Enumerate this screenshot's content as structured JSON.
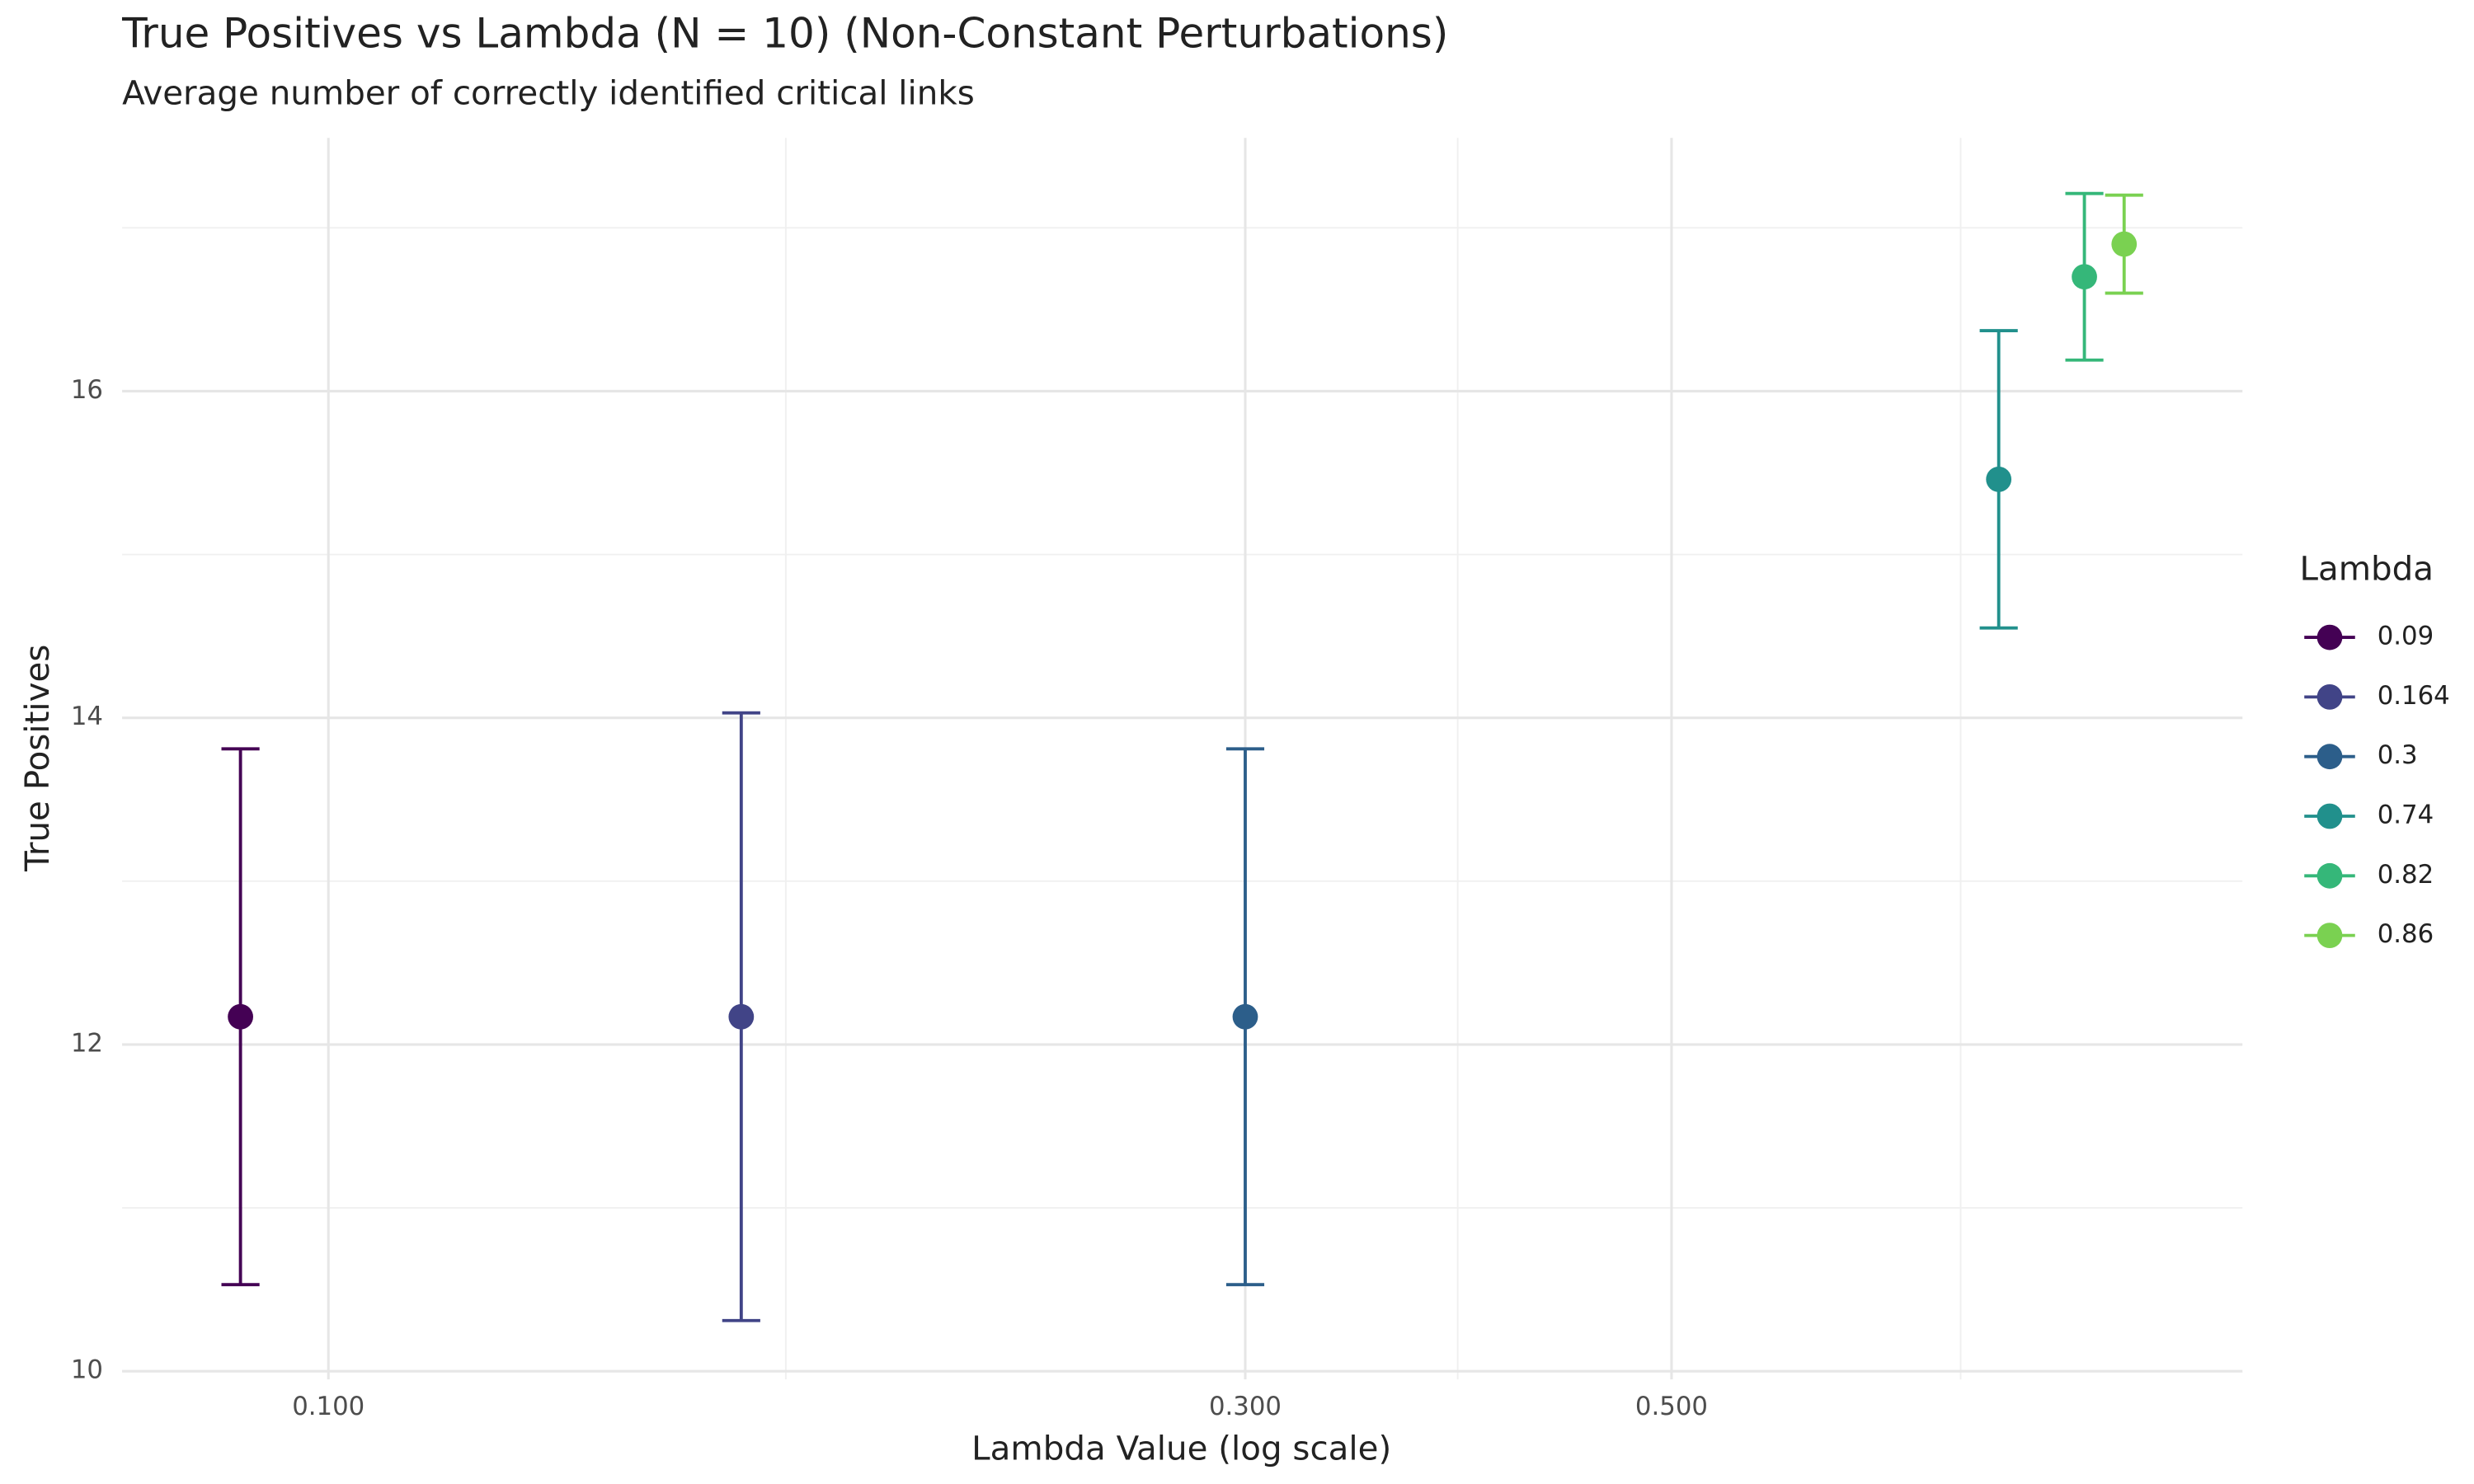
{
  "chart_data": {
    "type": "scatter",
    "title": "True Positives vs Lambda (N = 10) (Non-Constant Perturbations)",
    "subtitle": "Average number of correctly identified critical links",
    "x_label": "Lambda Value (log scale)",
    "y_label": "True Positives",
    "legend_title": "Lambda",
    "legend_position": "right",
    "x_log_scale": true,
    "grid": true,
    "xlim": [
      0.0781,
      0.991
    ],
    "ylim": [
      9.95,
      17.55
    ],
    "xticks": [
      {
        "value": 0.1,
        "label": "0.100"
      },
      {
        "value": 0.3,
        "label": "0.300"
      },
      {
        "value": 0.5,
        "label": "0.500"
      }
    ],
    "x_minor_ticks": [
      0.173,
      0.387,
      0.707
    ],
    "yticks": [
      10,
      12,
      14,
      16
    ],
    "y_minor_ticks": [
      11,
      13,
      15,
      17
    ],
    "series": [
      {
        "name": "0.09",
        "color": "#440154",
        "x": [
          0.09
        ],
        "values": [
          12.17
        ],
        "errors": [
          1.64
        ]
      },
      {
        "name": "0.164",
        "color": "#414487",
        "x": [
          0.164
        ],
        "values": [
          12.17
        ],
        "errors": [
          1.86
        ]
      },
      {
        "name": "0.3",
        "color": "#2c5e8a",
        "x": [
          0.3
        ],
        "values": [
          12.17
        ],
        "errors": [
          1.64
        ]
      },
      {
        "name": "0.74",
        "color": "#21908c",
        "x": [
          0.74
        ],
        "values": [
          15.46
        ],
        "errors": [
          0.91
        ]
      },
      {
        "name": "0.82",
        "color": "#35b779",
        "x": [
          0.82
        ],
        "values": [
          16.7
        ],
        "errors": [
          0.51
        ]
      },
      {
        "name": "0.86",
        "color": "#7ad151",
        "x": [
          0.86
        ],
        "values": [
          16.9
        ],
        "errors": [
          0.3
        ]
      }
    ]
  }
}
